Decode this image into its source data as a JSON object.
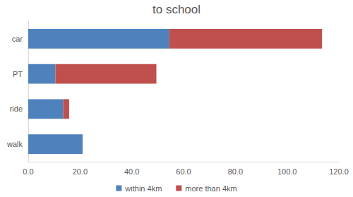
{
  "chart_data": {
    "type": "bar",
    "title": "to school",
    "orientation": "horizontal",
    "stacked": true,
    "categories": [
      "walk",
      "ride",
      "PT",
      "car"
    ],
    "series": [
      {
        "name": "within 4km",
        "color": "#4f81bd",
        "values": [
          21.0,
          13.5,
          10.5,
          54.5
        ]
      },
      {
        "name": "more than 4km",
        "color": "#c0504d",
        "values": [
          0,
          2.3,
          39.0,
          59.0
        ]
      }
    ],
    "xlim": [
      0,
      120
    ],
    "xticks": [
      {
        "value": 0,
        "label": "0.0"
      },
      {
        "value": 20,
        "label": "20.0"
      },
      {
        "value": 40,
        "label": "40.0"
      },
      {
        "value": 60,
        "label": "60.0"
      },
      {
        "value": 80,
        "label": "80.0"
      },
      {
        "value": 100,
        "label": "100.0"
      },
      {
        "value": 120,
        "label": "120.0"
      }
    ],
    "grid": false,
    "legend": "bottom"
  }
}
